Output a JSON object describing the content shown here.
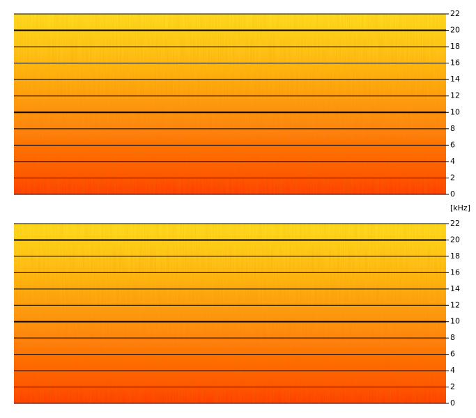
{
  "chart_data": [
    {
      "type": "spectrogram",
      "y_label": "[kHz]",
      "ylim": [
        0,
        22
      ],
      "yticks": [
        0,
        2,
        4,
        6,
        8,
        10,
        12,
        14,
        16,
        18,
        20,
        22
      ],
      "grid": true
    },
    {
      "type": "spectrogram",
      "ylim": [
        0,
        22
      ],
      "yticks": [
        0,
        2,
        4,
        6,
        8,
        10,
        12,
        14,
        16,
        18,
        20,
        22
      ],
      "grid": true
    }
  ]
}
